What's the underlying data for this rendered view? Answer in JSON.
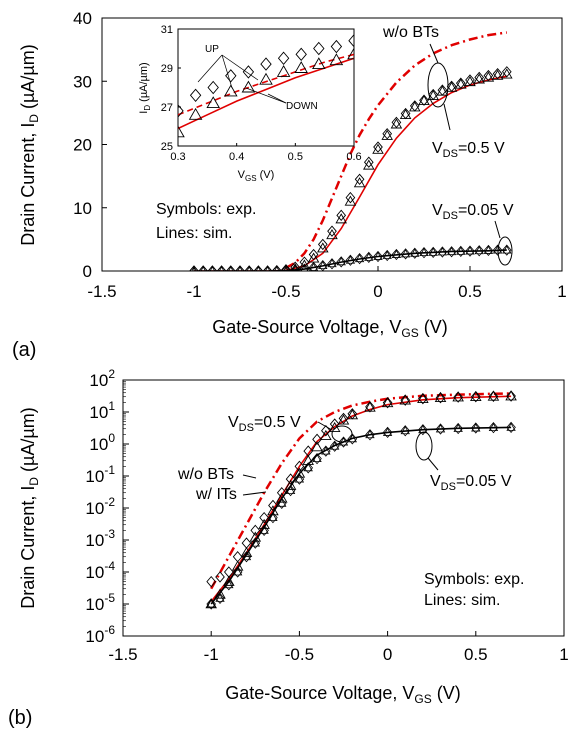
{
  "colors": {
    "sim_with_bt": "#000000",
    "sim_without_bt": "#e00000",
    "symbols": "#000000"
  },
  "chart_data": [
    {
      "panel_label": "(a)",
      "type": "scatter",
      "xlabel": {
        "main": "Gate-Source Voltage, V",
        "sub": "GS",
        "unit": " (V)"
      },
      "ylabel": {
        "main": "Drain Current, I",
        "sub": "D",
        "unit": " (µA/µm)"
      },
      "xlim": [
        -1.5,
        1
      ],
      "ylim": [
        0,
        40
      ],
      "x_ticks": [
        "-1.5",
        "-1",
        "-0.5",
        "0",
        "0.5",
        "1"
      ],
      "y_ticks": [
        "0",
        "10",
        "20",
        "30",
        "40"
      ],
      "annotations": {
        "wo_bts": "w/o BTs",
        "vds_high": {
          "main": "V",
          "sub": "DS",
          "rest": "=0.5 V"
        },
        "vds_low": {
          "main": "V",
          "sub": "DS",
          "rest": "=0.05 V"
        },
        "symbols": "Symbols: exp.",
        "lines": "Lines: sim."
      },
      "series": [
        {
          "kind": "sim_wo_bt",
          "x": [
            -0.5,
            -0.45,
            -0.4,
            -0.35,
            -0.3,
            -0.25,
            -0.2,
            -0.15,
            -0.1,
            -0.05,
            0,
            0.1,
            0.2,
            0.3,
            0.4,
            0.5,
            0.6,
            0.7
          ],
          "y": [
            0.5,
            1.3,
            2.8,
            5,
            8,
            11.5,
            15,
            18.5,
            21.5,
            24,
            26.2,
            29.8,
            32.5,
            34.4,
            35.7,
            36.6,
            37.3,
            37.7
          ]
        },
        {
          "kind": "sim_high",
          "x": [
            -1,
            -0.6,
            -0.5,
            -0.4,
            -0.3,
            -0.2,
            -0.1,
            0,
            0.1,
            0.2,
            0.3,
            0.4,
            0.5,
            0.6,
            0.7
          ],
          "y": [
            0,
            0,
            0.1,
            0.8,
            2.8,
            6.7,
            11.7,
            16.8,
            21,
            24.2,
            26.5,
            28.2,
            29.4,
            30.2,
            30.8
          ]
        },
        {
          "kind": "sim_low",
          "x": [
            -1,
            -0.6,
            -0.5,
            -0.4,
            -0.3,
            -0.2,
            -0.1,
            0,
            0.2,
            0.4,
            0.6,
            0.7
          ],
          "y": [
            0,
            0,
            0.05,
            0.3,
            0.8,
            1.4,
            1.9,
            2.3,
            2.8,
            3.1,
            3.2,
            3.3
          ]
        },
        {
          "kind": "exp_diamond",
          "x": [
            -1,
            -0.95,
            -0.9,
            -0.85,
            -0.8,
            -0.75,
            -0.7,
            -0.65,
            -0.6,
            -0.55,
            -0.5,
            -0.45,
            -0.4,
            -0.35,
            -0.3,
            -0.25,
            -0.2,
            -0.15,
            -0.1,
            -0.05,
            0,
            0.05,
            0.1,
            0.15,
            0.2,
            0.25,
            0.3,
            0.35,
            0.4,
            0.45,
            0.5,
            0.55,
            0.6,
            0.65,
            0.7
          ],
          "y": [
            0,
            0,
            0,
            0,
            0,
            0,
            0,
            0,
            0,
            0.05,
            0.2,
            0.6,
            1.4,
            2.6,
            4.2,
            6.3,
            8.8,
            11.6,
            14.5,
            17.2,
            19.6,
            21.7,
            23.5,
            24.9,
            26.1,
            27,
            27.9,
            28.6,
            29.2,
            29.7,
            30.2,
            30.6,
            30.9,
            31.2,
            31.5
          ]
        },
        {
          "kind": "exp_triangle",
          "x": [
            -0.45,
            -0.4,
            -0.35,
            -0.3,
            -0.25,
            -0.2,
            -0.15,
            -0.1,
            -0.05,
            0,
            0.05,
            0.1,
            0.15,
            0.2,
            0.25,
            0.3,
            0.35,
            0.4,
            0.45,
            0.5,
            0.55,
            0.6,
            0.65,
            0.7
          ],
          "y": [
            0.3,
            0.9,
            2,
            3.6,
            5.7,
            8.2,
            11,
            13.9,
            16.7,
            19.2,
            21.4,
            23.2,
            24.7,
            25.9,
            26.9,
            27.7,
            28.4,
            29,
            29.5,
            29.9,
            30.3,
            30.6,
            30.9,
            31.1
          ]
        },
        {
          "kind": "exp_low",
          "x": [
            -1,
            -0.95,
            -0.9,
            -0.85,
            -0.8,
            -0.75,
            -0.7,
            -0.65,
            -0.6,
            -0.55,
            -0.5,
            -0.45,
            -0.4,
            -0.35,
            -0.3,
            -0.25,
            -0.2,
            -0.15,
            -0.1,
            -0.05,
            0,
            0.05,
            0.1,
            0.15,
            0.2,
            0.25,
            0.3,
            0.35,
            0.4,
            0.45,
            0.5,
            0.55,
            0.6,
            0.65,
            0.7
          ],
          "y": [
            0,
            0,
            0,
            0,
            0,
            0,
            0,
            0,
            0,
            0.02,
            0.05,
            0.15,
            0.3,
            0.55,
            0.85,
            1.15,
            1.45,
            1.7,
            1.95,
            2.15,
            2.3,
            2.45,
            2.6,
            2.7,
            2.8,
            2.9,
            2.95,
            3,
            3.05,
            3.1,
            3.15,
            3.2,
            3.25,
            3.3,
            3.3
          ]
        }
      ],
      "inset": {
        "xlabel": {
          "main": "V",
          "sub": "GS",
          "unit": " (V)"
        },
        "ylabel": {
          "main": "I",
          "sub": "D",
          "unit": " (µA/µm)"
        },
        "xlim": [
          0.3,
          0.6
        ],
        "ylim": [
          25,
          31
        ],
        "x_ticks": [
          "0.3",
          "0.4",
          "0.5",
          "0.6"
        ],
        "y_ticks": [
          "25",
          "27",
          "29",
          "31"
        ],
        "labels": {
          "up": "UP",
          "down": "DOWN"
        },
        "series": [
          {
            "kind": "sim_wo_bt_dash",
            "x": [
              0.3,
              0.35,
              0.4,
              0.45,
              0.5,
              0.55,
              0.6
            ],
            "y": [
              26.6,
              27.2,
              27.8,
              28.3,
              28.8,
              29.3,
              29.7
            ]
          },
          {
            "kind": "sim_high",
            "x": [
              0.3,
              0.35,
              0.4,
              0.45,
              0.5,
              0.55,
              0.6
            ],
            "y": [
              25.9,
              26.6,
              27.3,
              27.9,
              28.5,
              29.0,
              29.5
            ]
          },
          {
            "kind": "exp_diamond",
            "x": [
              0.3,
              0.33,
              0.36,
              0.39,
              0.42,
              0.45,
              0.48,
              0.51,
              0.54,
              0.57,
              0.6
            ],
            "y": [
              26.8,
              27.6,
              28.0,
              28.6,
              28.8,
              29.2,
              29.5,
              29.7,
              30.0,
              30.1,
              30.4
            ]
          },
          {
            "kind": "exp_triangle",
            "x": [
              0.3,
              0.33,
              0.36,
              0.39,
              0.42,
              0.45,
              0.48,
              0.51,
              0.54,
              0.57,
              0.6
            ],
            "y": [
              25.7,
              26.6,
              27.2,
              27.8,
              28.0,
              28.4,
              28.8,
              29.0,
              29.2,
              29.4,
              29.7
            ]
          }
        ]
      }
    },
    {
      "panel_label": "(b)",
      "type": "scatter",
      "y_scale": "log",
      "xlabel": {
        "main": "Gate-Source Voltage, V",
        "sub": "GS",
        "unit": " (V)"
      },
      "ylabel": {
        "main": "Drain Current, I",
        "sub": "D",
        "unit": " (µA/µm)"
      },
      "xlim": [
        -1.5,
        1
      ],
      "ylim_exp": [
        -6,
        2
      ],
      "x_ticks": [
        "-1.5",
        "-1",
        "-0.5",
        "0",
        "0.5",
        "1"
      ],
      "y_ticks": [
        "2",
        "1",
        "0",
        "-1",
        "-2",
        "-3",
        "-4",
        "-5",
        "-6"
      ],
      "y_tick_base": "10",
      "annotations": {
        "vds_high": {
          "main": "V",
          "sub": "DS",
          "rest": "=0.5 V"
        },
        "vds_low": {
          "main": "V",
          "sub": "DS",
          "rest": "=0.05 V"
        },
        "wo_bts": "w/o BTs",
        "w_its": "w/ ITs",
        "symbols": "Symbols: exp.",
        "lines": "Lines: sim."
      },
      "series": [
        {
          "kind": "sim_wo_bt",
          "x": [
            -1,
            -0.9,
            -0.8,
            -0.7,
            -0.6,
            -0.5,
            -0.4,
            -0.3,
            -0.2,
            -0.1,
            0,
            0.2,
            0.4,
            0.7
          ],
          "y": [
            3e-05,
            0.0003,
            0.003,
            0.03,
            0.25,
            1.5,
            5,
            10,
            16,
            21,
            26,
            32,
            35,
            38
          ]
        },
        {
          "kind": "sim_high",
          "x": [
            -1,
            -0.9,
            -0.8,
            -0.7,
            -0.6,
            -0.5,
            -0.4,
            -0.3,
            -0.2,
            -0.1,
            0,
            0.2,
            0.4,
            0.7
          ],
          "y": [
            1.2e-05,
            6e-05,
            0.0004,
            0.003,
            0.025,
            0.2,
            1.2,
            3.5,
            7.5,
            12,
            17,
            24,
            28,
            31
          ]
        },
        {
          "kind": "sim_low",
          "x": [
            -1,
            -0.9,
            -0.8,
            -0.7,
            -0.6,
            -0.5,
            -0.4,
            -0.3,
            -0.2,
            -0.1,
            0,
            0.2,
            0.4,
            0.7
          ],
          "y": [
            1e-05,
            5e-05,
            0.00035,
            0.0025,
            0.02,
            0.12,
            0.45,
            0.9,
            1.5,
            1.95,
            2.3,
            2.8,
            3.1,
            3.3
          ]
        },
        {
          "kind": "exp_diamond",
          "x": [
            -1,
            -0.95,
            -0.9,
            -0.85,
            -0.8,
            -0.75,
            -0.7,
            -0.65,
            -0.6,
            -0.55,
            -0.5,
            -0.45,
            -0.4,
            -0.35,
            -0.3,
            -0.25,
            -0.2,
            -0.1,
            0,
            0.1,
            0.2,
            0.3,
            0.4,
            0.5,
            0.6,
            0.7
          ],
          "y": [
            5e-05,
            7e-05,
            0.0001,
            0.0003,
            0.0008,
            0.002,
            0.005,
            0.012,
            0.03,
            0.08,
            0.2,
            0.6,
            1.4,
            2.6,
            4.2,
            6.3,
            8.8,
            14.5,
            19.6,
            23.5,
            26.1,
            27.9,
            29.2,
            30.2,
            30.9,
            31.5
          ]
        },
        {
          "kind": "exp_triangle",
          "x": [
            -1,
            -0.95,
            -0.9,
            -0.85,
            -0.8,
            -0.75,
            -0.7,
            -0.65,
            -0.6,
            -0.55,
            -0.5,
            -0.45,
            -0.4,
            -0.35,
            -0.3,
            -0.25,
            -0.2,
            -0.1,
            0,
            0.1,
            0.2,
            0.3,
            0.4,
            0.5,
            0.6,
            0.7
          ],
          "y": [
            1e-05,
            2e-05,
            5e-05,
            0.00015,
            0.0004,
            0.0012,
            0.003,
            0.008,
            0.02,
            0.05,
            0.12,
            0.3,
            0.8,
            1.8,
            3.2,
            5.5,
            8,
            13.9,
            19.2,
            23.2,
            25.9,
            27.7,
            29,
            29.9,
            30.6,
            31.1
          ]
        },
        {
          "kind": "exp_low",
          "x": [
            -1,
            -0.95,
            -0.9,
            -0.85,
            -0.8,
            -0.75,
            -0.7,
            -0.65,
            -0.6,
            -0.55,
            -0.5,
            -0.45,
            -0.4,
            -0.35,
            -0.3,
            -0.25,
            -0.2,
            -0.1,
            0,
            0.1,
            0.2,
            0.3,
            0.4,
            0.5,
            0.6,
            0.7
          ],
          "y": [
            1e-05,
            1.5e-05,
            4e-05,
            0.0001,
            0.0003,
            0.0008,
            0.002,
            0.005,
            0.014,
            0.035,
            0.08,
            0.18,
            0.35,
            0.6,
            0.85,
            1.15,
            1.45,
            1.95,
            2.3,
            2.6,
            2.8,
            2.95,
            3.05,
            3.15,
            3.25,
            3.3
          ]
        }
      ]
    }
  ]
}
